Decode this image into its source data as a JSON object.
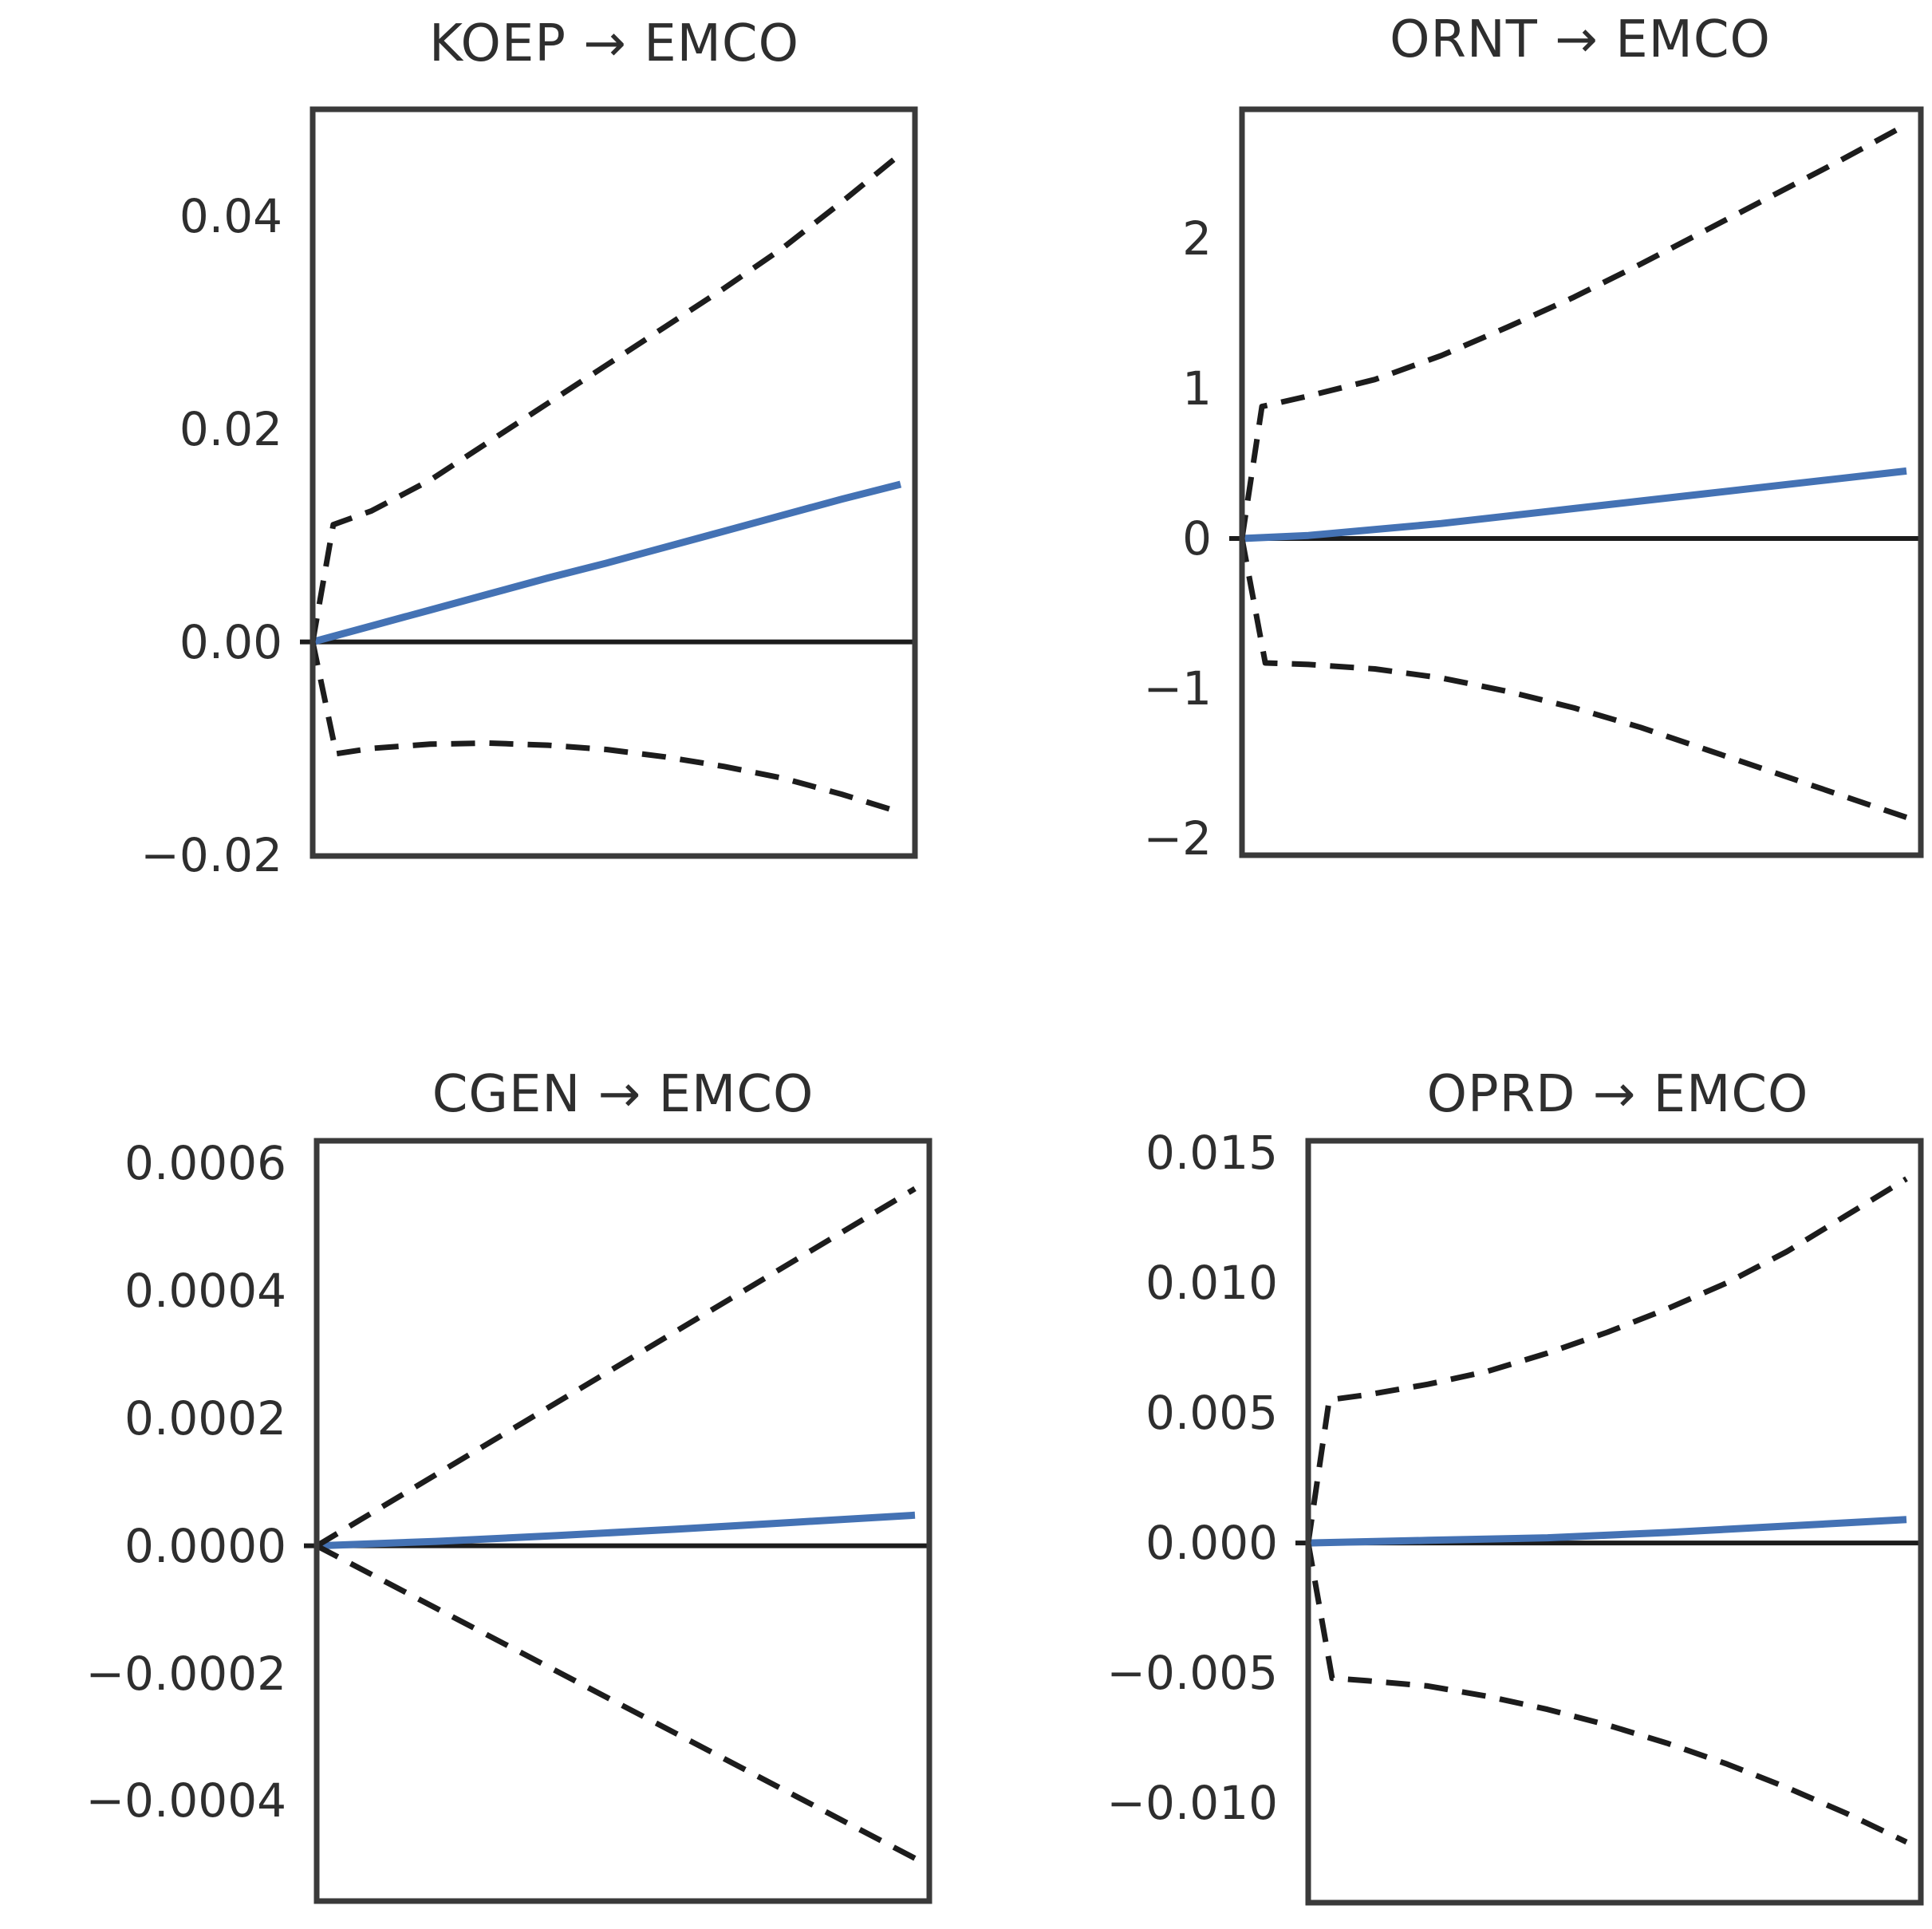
{
  "figure": {
    "background": "#ffffff",
    "text_color": "#2e2e2e",
    "spine_color": "#3a3a3a",
    "zero_line_color": "#1c1c1c",
    "band_color": "#1c1c1c",
    "mean_color": "#4472b4"
  },
  "chart_data": [
    {
      "id": "koep_emco",
      "type": "line",
      "title": "KOEP → EMCO",
      "xlabel": "",
      "ylabel": "",
      "grid": false,
      "legend": "none",
      "zero_line": true,
      "xlim": [
        0,
        10
      ],
      "ylim": [
        -0.0201,
        0.05
      ],
      "yticks": [
        {
          "value": 0.04,
          "label": "0.04"
        },
        {
          "value": 0.02,
          "label": "0.02"
        },
        {
          "value": 0.0,
          "label": "0.00"
        },
        {
          "value": -0.02,
          "label": "−0.02"
        }
      ],
      "series": [
        {
          "name": "mean-response",
          "style": "solid",
          "color": "#4472b4",
          "x": [
            0,
            1,
            2,
            3,
            4,
            5,
            6,
            7,
            8,
            9,
            10
          ],
          "y": [
            0,
            0.0015,
            0.003,
            0.0045,
            0.006,
            0.0074,
            0.0089,
            0.0104,
            0.0119,
            0.0134,
            0.0148
          ]
        },
        {
          "name": "upper-confidence-band",
          "style": "dashed",
          "color": "#1c1c1c",
          "x": [
            0,
            0.35,
            1,
            2,
            3,
            4,
            5,
            6,
            7,
            8,
            9,
            10
          ],
          "y": [
            0,
            0.011,
            0.0123,
            0.0152,
            0.0188,
            0.0224,
            0.026,
            0.0296,
            0.0332,
            0.037,
            0.0413,
            0.0458
          ]
        },
        {
          "name": "lower-confidence-band",
          "style": "dashed",
          "color": "#1c1c1c",
          "x": [
            0,
            0.4,
            1,
            2,
            3,
            4,
            5,
            6,
            7,
            8,
            9,
            10
          ],
          "y": [
            0,
            -0.0105,
            -0.01,
            -0.0096,
            -0.0095,
            -0.0097,
            -0.0101,
            -0.0108,
            -0.0117,
            -0.0128,
            -0.0143,
            -0.016
          ]
        }
      ]
    },
    {
      "id": "ornt_emco",
      "type": "line",
      "title": "ORNT → EMCO",
      "xlabel": "",
      "ylabel": "",
      "grid": false,
      "legend": "none",
      "zero_line": true,
      "xlim": [
        0,
        10
      ],
      "ylim": [
        -2.112,
        2.862
      ],
      "yticks": [
        {
          "value": 2,
          "label": "2"
        },
        {
          "value": 1,
          "label": "1"
        },
        {
          "value": 0,
          "label": "0"
        },
        {
          "value": -1,
          "label": "−1"
        },
        {
          "value": -2,
          "label": "−2"
        }
      ],
      "series": [
        {
          "name": "mean-response",
          "style": "solid",
          "color": "#4472b4",
          "x": [
            0,
            1,
            2,
            3,
            4,
            5,
            6,
            7,
            8,
            9,
            10
          ],
          "y": [
            0,
            0.02,
            0.06,
            0.1,
            0.15,
            0.2,
            0.25,
            0.3,
            0.35,
            0.4,
            0.45
          ]
        },
        {
          "name": "upper-confidence-band",
          "style": "dashed",
          "color": "#1c1c1c",
          "x": [
            0,
            0.3,
            1,
            2,
            3,
            4,
            5,
            6,
            7,
            8,
            9,
            10
          ],
          "y": [
            0,
            0.88,
            0.95,
            1.06,
            1.22,
            1.41,
            1.61,
            1.83,
            2.06,
            2.29,
            2.52,
            2.76
          ]
        },
        {
          "name": "lower-confidence-band",
          "style": "dashed",
          "color": "#1c1c1c",
          "x": [
            0,
            0.35,
            1,
            2,
            3,
            4,
            5,
            6,
            7,
            8,
            9,
            10
          ],
          "y": [
            0,
            -0.83,
            -0.84,
            -0.87,
            -0.93,
            -1.02,
            -1.13,
            -1.26,
            -1.41,
            -1.56,
            -1.71,
            -1.86
          ]
        }
      ]
    },
    {
      "id": "cgen_emco",
      "type": "line",
      "title": "CGEN → EMCO",
      "xlabel": "",
      "ylabel": "",
      "grid": false,
      "legend": "none",
      "zero_line": true,
      "xlim": [
        0,
        10
      ],
      "ylim": [
        -0.000557,
        0.000635
      ],
      "yticks": [
        {
          "value": 0.0006,
          "label": "0.0006"
        },
        {
          "value": 0.0004,
          "label": "0.0004"
        },
        {
          "value": 0.0002,
          "label": "0.0002"
        },
        {
          "value": 0.0,
          "label": "0.0000"
        },
        {
          "value": -0.0002,
          "label": "−0.0002"
        },
        {
          "value": -0.0004,
          "label": "−0.0004"
        }
      ],
      "series": [
        {
          "name": "mean-response",
          "style": "solid",
          "color": "#4472b4",
          "x": [
            0,
            2,
            4,
            6,
            8,
            10
          ],
          "y": [
            0,
            7e-06,
            1.6e-05,
            2.6e-05,
            3.7e-05,
            4.8e-05
          ]
        },
        {
          "name": "upper-confidence-band",
          "style": "dashed",
          "color": "#1c1c1c",
          "x": [
            0,
            2,
            4,
            6,
            8,
            10
          ],
          "y": [
            0,
            0.000112,
            0.000224,
            0.000336,
            0.000448,
            0.00056
          ]
        },
        {
          "name": "lower-confidence-band",
          "style": "dashed",
          "color": "#1c1c1c",
          "x": [
            0,
            2,
            4,
            6,
            8,
            10
          ],
          "y": [
            0,
            -9.8e-05,
            -0.000196,
            -0.000294,
            -0.000392,
            -0.00049
          ]
        }
      ]
    },
    {
      "id": "oprd_emco",
      "type": "line",
      "title": "OPRD → EMCO",
      "xlabel": "",
      "ylabel": "",
      "grid": false,
      "legend": "none",
      "zero_line": true,
      "xlim": [
        0,
        10
      ],
      "ylim": [
        -0.01383,
        0.01546
      ],
      "yticks": [
        {
          "value": 0.015,
          "label": "0.015"
        },
        {
          "value": 0.01,
          "label": "0.010"
        },
        {
          "value": 0.005,
          "label": "0.005"
        },
        {
          "value": 0.0,
          "label": "0.000"
        },
        {
          "value": -0.005,
          "label": "−0.005"
        },
        {
          "value": -0.01,
          "label": "−0.010"
        }
      ],
      "series": [
        {
          "name": "mean-response",
          "style": "solid",
          "color": "#4472b4",
          "x": [
            0,
            2,
            4,
            6,
            8,
            10
          ],
          "y": [
            0,
            0.0001,
            0.0002,
            0.0004,
            0.00065,
            0.0009
          ]
        },
        {
          "name": "upper-confidence-band",
          "style": "dashed",
          "color": "#1c1c1c",
          "x": [
            0,
            0.35,
            1,
            2,
            3,
            4,
            5,
            6,
            7,
            8,
            9,
            10
          ],
          "y": [
            0,
            0.0055,
            0.0057,
            0.0061,
            0.0066,
            0.0073,
            0.0081,
            0.009,
            0.01,
            0.0112,
            0.0126,
            0.014
          ]
        },
        {
          "name": "lower-confidence-band",
          "style": "dashed",
          "color": "#1c1c1c",
          "x": [
            0,
            0.4,
            1,
            2,
            3,
            4,
            5,
            6,
            7,
            8,
            9,
            10
          ],
          "y": [
            0,
            -0.0052,
            -0.0053,
            -0.0055,
            -0.0059,
            -0.0064,
            -0.007,
            -0.0077,
            -0.0085,
            -0.0094,
            -0.0104,
            -0.0115
          ]
        }
      ]
    }
  ]
}
